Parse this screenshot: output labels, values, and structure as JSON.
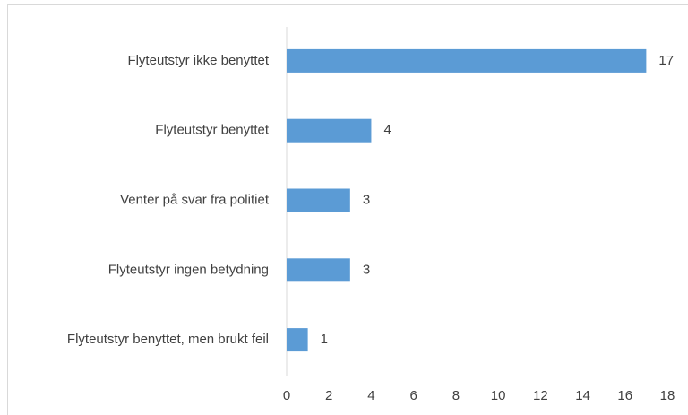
{
  "chart_data": {
    "type": "bar",
    "orientation": "horizontal",
    "categories": [
      "Flyteutstyr ikke benyttet",
      "Flyteutstyr benyttet",
      "Venter på svar fra politiet",
      "Flyteutstyr ingen betydning",
      "Flyteutstyr benyttet, men brukt feil"
    ],
    "values": [
      17,
      4,
      3,
      3,
      1
    ],
    "color": "#5b9bd5",
    "xlim": [
      0,
      18
    ],
    "xticks": [
      0,
      2,
      4,
      6,
      8,
      10,
      12,
      14,
      16,
      18
    ],
    "grid": false,
    "data_labels": true
  }
}
